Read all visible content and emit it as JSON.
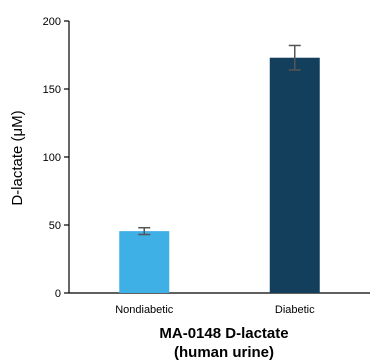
{
  "chart_data": {
    "type": "bar",
    "categories": [
      "Nondiabetic",
      "Diabetic"
    ],
    "values": [
      45.5,
      173
    ],
    "errors": [
      2.5,
      9
    ],
    "colors": [
      "#3fb0e6",
      "#133f5c"
    ],
    "error_bar_color": "#555555",
    "xtitle_lines": [
      "MA-0148 D-lactate",
      "(human urine)"
    ],
    "ylabel": "D-lactate (μM)",
    "ylim": [
      0,
      200
    ],
    "yticks": [
      0,
      50,
      100,
      150,
      200
    ],
    "grid": false,
    "legend": "none"
  }
}
